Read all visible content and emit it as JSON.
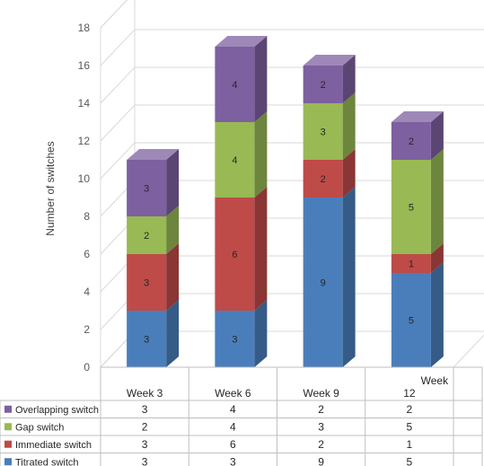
{
  "chart_data": {
    "type": "bar",
    "stacked": true,
    "three_d": true,
    "title": "",
    "xlabel": "",
    "ylabel": "Number of switches",
    "ylim": [
      0,
      18
    ],
    "y_ticks": [
      0,
      2,
      4,
      6,
      8,
      10,
      12,
      14,
      16,
      18
    ],
    "grid": true,
    "legend": "bottom data table",
    "categories": [
      "Week 3",
      "Week 6",
      "Week 9",
      "Week 12"
    ],
    "series": [
      {
        "name": "Titrated switch",
        "color": "#4a7ebb",
        "values": [
          3,
          3,
          9,
          5
        ]
      },
      {
        "name": "Immediate switch",
        "color": "#be4b48",
        "values": [
          3,
          6,
          2,
          1
        ]
      },
      {
        "name": "Gap switch",
        "color": "#98b954",
        "values": [
          2,
          4,
          3,
          5
        ]
      },
      {
        "name": "Overlapping switch",
        "color": "#7d60a0",
        "values": [
          3,
          4,
          2,
          2
        ]
      }
    ]
  }
}
